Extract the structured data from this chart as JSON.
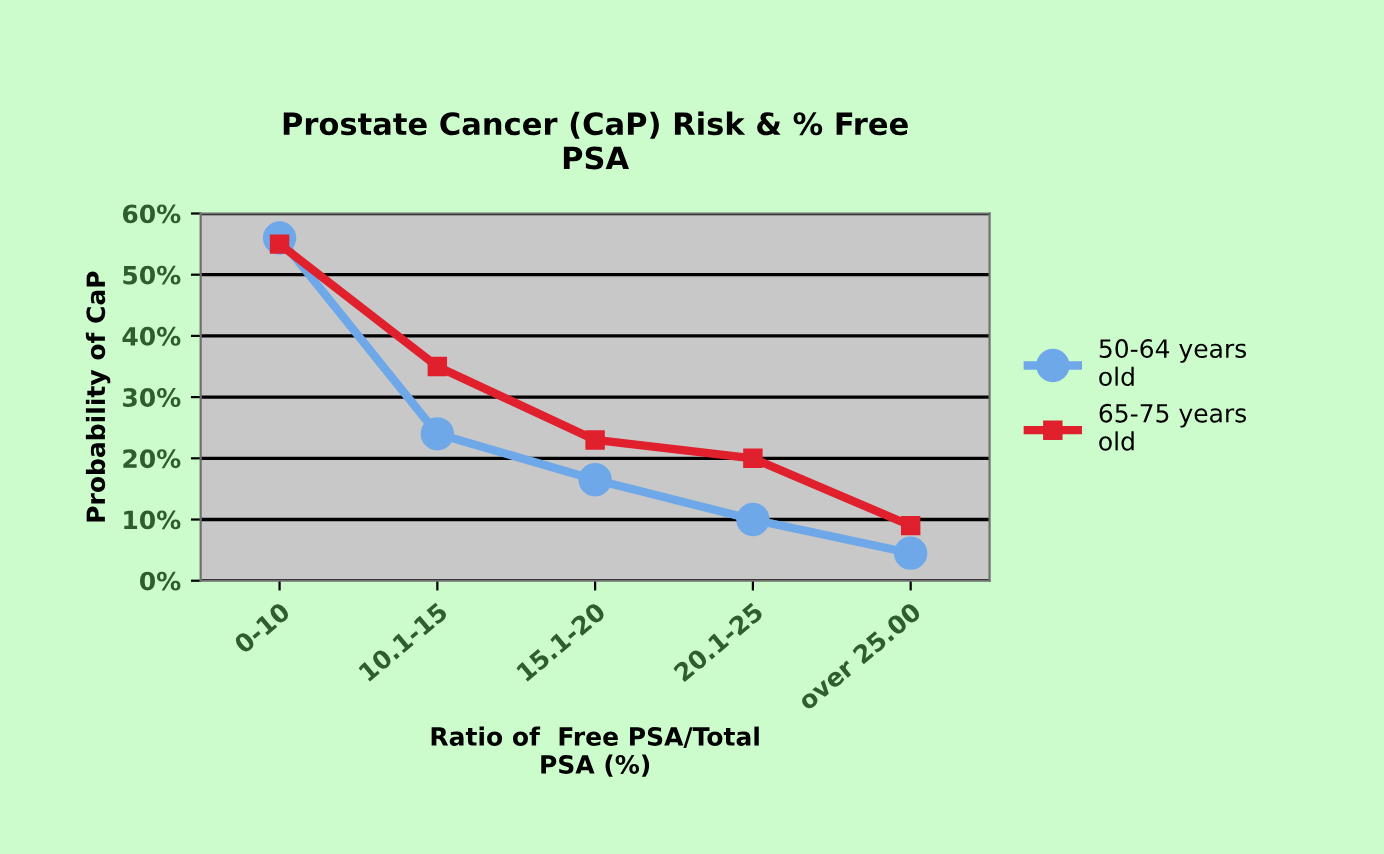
{
  "chart_data": {
    "type": "line",
    "title": "Prostate Cancer (CaP) Risk & % Free\nPSA",
    "xlabel": "Ratio of  Free PSA/Total\nPSA (%)",
    "ylabel": "Probability of CaP",
    "categories": [
      "0-10",
      "10.1-15",
      "15.1-20",
      "20.1-25",
      "over 25.00"
    ],
    "series": [
      {
        "name": "50-64 years\nold",
        "color": "#6fa8e8",
        "values": [
          56,
          24,
          16.5,
          10,
          4.5
        ],
        "marker": "circle"
      },
      {
        "name": "65-75 years\nold",
        "color": "#e0202c",
        "values": [
          55,
          35,
          23,
          20,
          9
        ],
        "marker": "square"
      }
    ],
    "ylim": [
      0,
      60
    ],
    "yticks": [
      {
        "value": 0,
        "label": "0%"
      },
      {
        "value": 10,
        "label": "10%"
      },
      {
        "value": 20,
        "label": "20%"
      },
      {
        "value": 30,
        "label": "30%"
      },
      {
        "value": 40,
        "label": "40%"
      },
      {
        "value": 50,
        "label": "50%"
      },
      {
        "value": 60,
        "label": "60%"
      }
    ],
    "grid": "y",
    "legend": "right"
  }
}
